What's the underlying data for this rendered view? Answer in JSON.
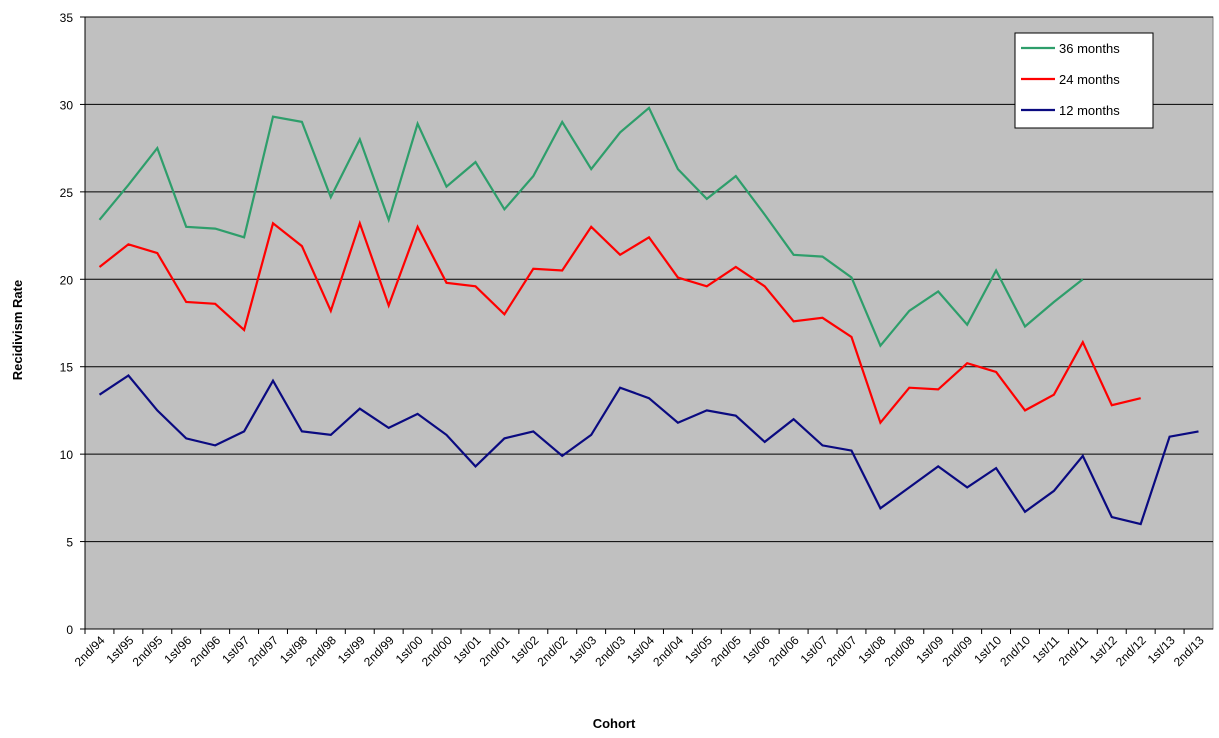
{
  "chart_data": {
    "type": "line",
    "x_label": "Cohort",
    "y_label": "Recidivism Rate",
    "categories": [
      "2nd/94",
      "1st/95",
      "2nd/95",
      "1st/96",
      "2nd/96",
      "1st/97",
      "2nd/97",
      "1st/98",
      "2nd/98",
      "1st/99",
      "2nd/99",
      "1st/00",
      "2nd/00",
      "1st/01",
      "2nd/01",
      "1st/02",
      "2nd/02",
      "1st/03",
      "2nd/03",
      "1st/04",
      "2nd/04",
      "1st/05",
      "2nd/05",
      "1st/06",
      "2nd/06",
      "1st/07",
      "2nd/07",
      "1st/08",
      "2nd/08",
      "1st/09",
      "2nd/09",
      "1st/10",
      "2nd/10",
      "1st/11",
      "2nd/11",
      "1st/12",
      "2nd/12",
      "1st/13",
      "2nd/13"
    ],
    "series": [
      {
        "name": "36 months",
        "color": "#2e9e6b",
        "values": [
          23.4,
          25.4,
          27.5,
          23.0,
          22.9,
          22.4,
          29.3,
          29.0,
          24.7,
          28.0,
          23.4,
          28.9,
          25.3,
          26.7,
          24.0,
          25.9,
          29.0,
          26.3,
          28.4,
          29.8,
          26.3,
          24.6,
          25.9,
          23.7,
          21.4,
          21.3,
          20.1,
          16.2,
          18.2,
          19.3,
          17.4,
          20.5,
          17.3,
          18.7,
          20.0,
          null,
          null,
          null,
          null
        ]
      },
      {
        "name": "24 months",
        "color": "#ff0000",
        "values": [
          20.7,
          22.0,
          21.5,
          18.7,
          18.6,
          17.1,
          23.2,
          21.9,
          18.2,
          23.2,
          18.5,
          23.0,
          19.8,
          19.6,
          18.0,
          20.6,
          20.5,
          23.0,
          21.4,
          22.4,
          20.1,
          19.6,
          20.7,
          19.6,
          17.6,
          17.8,
          16.7,
          11.8,
          13.8,
          13.7,
          15.2,
          14.7,
          12.5,
          13.4,
          16.4,
          12.8,
          13.2,
          null,
          null
        ]
      },
      {
        "name": "12 months",
        "color": "#0a0a80",
        "values": [
          13.4,
          14.5,
          12.5,
          10.9,
          10.5,
          11.3,
          14.2,
          11.3,
          11.1,
          12.6,
          11.5,
          12.3,
          11.1,
          9.3,
          10.9,
          11.3,
          9.9,
          11.1,
          13.8,
          13.2,
          11.8,
          12.5,
          12.2,
          10.7,
          12.0,
          10.5,
          10.2,
          6.9,
          8.1,
          9.3,
          8.1,
          9.2,
          6.7,
          7.9,
          9.9,
          6.4,
          6.0,
          11.0,
          11.3
        ]
      }
    ],
    "ylim": [
      0,
      35
    ],
    "yticks": [
      0,
      5,
      10,
      15,
      20,
      25,
      30,
      35
    ],
    "grid": true,
    "legend": "top-right"
  }
}
